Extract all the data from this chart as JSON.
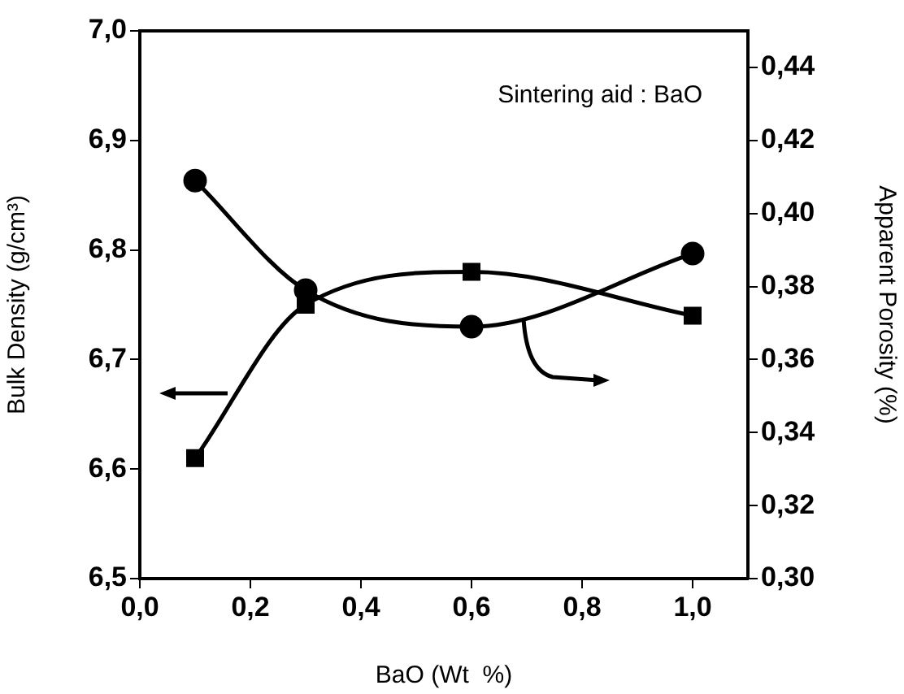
{
  "chart_data": {
    "type": "line",
    "xlabel": "BaO (Wt  %)",
    "ylabel": "Bulk Density (g/cm³)",
    "y2label": "Apparent Porosity (%)",
    "annotations": [
      "Sintering aid : BaO"
    ],
    "x": [
      0.1,
      0.3,
      0.6,
      1.0
    ],
    "xlim": [
      0,
      1.1
    ],
    "xticks": [
      {
        "value": 0,
        "label": "0,0"
      },
      {
        "value": 0.2,
        "label": "0,2"
      },
      {
        "value": 0.4,
        "label": "0,4"
      },
      {
        "value": 0.6,
        "label": "0,6"
      },
      {
        "value": 0.8,
        "label": "0,8"
      },
      {
        "value": 1.0,
        "label": "1,0"
      }
    ],
    "ylim": [
      6.5,
      7.0
    ],
    "yticks": [
      {
        "value": 6.5,
        "label": "6,5"
      },
      {
        "value": 6.6,
        "label": "6,6"
      },
      {
        "value": 6.7,
        "label": "6,7"
      },
      {
        "value": 6.8,
        "label": "6,8"
      },
      {
        "value": 6.9,
        "label": "6,9"
      },
      {
        "value": 7.0,
        "label": "7,0"
      }
    ],
    "y2lim": [
      0.3,
      0.45
    ],
    "y2ticks": [
      {
        "value": 0.3,
        "label": "0,30"
      },
      {
        "value": 0.32,
        "label": "0,32"
      },
      {
        "value": 0.34,
        "label": "0,34"
      },
      {
        "value": 0.36,
        "label": "0,36"
      },
      {
        "value": 0.38,
        "label": "0,38"
      },
      {
        "value": 0.4,
        "label": "0,40"
      },
      {
        "value": 0.42,
        "label": "0,42"
      },
      {
        "value": 0.44,
        "label": "0,44"
      }
    ],
    "series": [
      {
        "color": "#000000",
        "marker": "square",
        "values": [
          6.61,
          6.75,
          6.78,
          6.74
        ]
      },
      {
        "color": "#000000",
        "marker": "circle",
        "axis": "y2",
        "values": [
          0.409,
          0.379,
          0.369,
          0.389
        ]
      }
    ],
    "grid": false,
    "legend": false
  }
}
